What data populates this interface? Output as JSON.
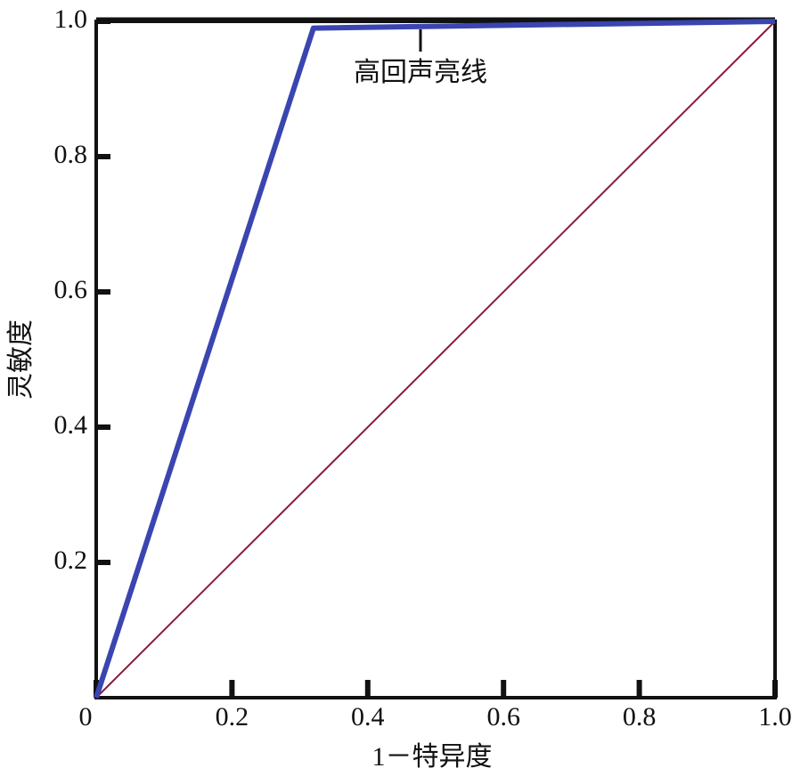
{
  "chart_data": {
    "type": "line",
    "x_label": "1－特异度",
    "y_label": "灵敏度",
    "annotation": "高回声亮线",
    "series": [
      {
        "color": "#3a45b0",
        "x": [
          0,
          0.32,
          1
        ],
        "values": [
          0,
          0.99,
          1
        ]
      },
      {
        "color": "#8b1a3c",
        "x": [
          0,
          1
        ],
        "values": [
          0,
          1
        ]
      }
    ],
    "xlim": [
      0,
      1
    ],
    "ylim": [
      0,
      1
    ],
    "xticks": [
      0,
      0.2,
      0.4,
      0.6,
      0.8,
      {
        "value": 1,
        "label": "1.0"
      }
    ],
    "yticks": [
      0.2,
      0.4,
      0.6,
      0.8,
      {
        "value": 1,
        "label": "1.0"
      }
    ]
  }
}
